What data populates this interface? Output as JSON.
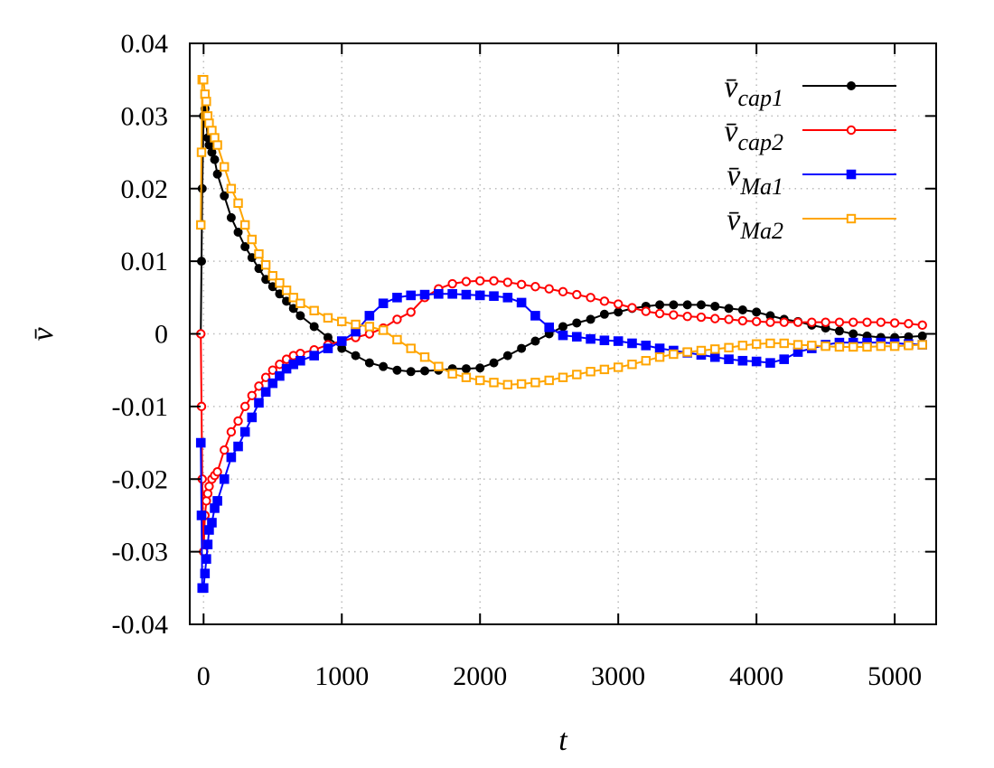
{
  "chart_data": {
    "type": "line",
    "title": "",
    "xlabel": "t",
    "ylabel": "v̄",
    "xlim": [
      -100,
      5300
    ],
    "ylim": [
      -0.04,
      0.04
    ],
    "xticks": [
      0,
      1000,
      2000,
      3000,
      4000,
      5000
    ],
    "xtick_labels": [
      "0",
      "1000",
      "2000",
      "3000",
      "4000",
      "5000"
    ],
    "yticks": [
      -0.04,
      -0.03,
      -0.02,
      -0.01,
      0,
      0.01,
      0.02,
      0.03,
      0.04
    ],
    "ytick_labels": [
      "-0.04",
      "-0.03",
      "-0.02",
      "-0.01",
      "0",
      "0.01",
      "0.02",
      "0.03",
      "0.04"
    ],
    "grid": true,
    "legend_position": "top-right",
    "series": [
      {
        "name": "v̄cap1",
        "label_main": "v̄",
        "label_sub": "cap1",
        "color": "#000000",
        "marker": "filled-circle",
        "x": [
          -20,
          -15,
          -10,
          0,
          10,
          20,
          30,
          40,
          60,
          80,
          100,
          150,
          200,
          250,
          300,
          350,
          400,
          450,
          500,
          550,
          600,
          650,
          700,
          800,
          900,
          1000,
          1100,
          1200,
          1300,
          1400,
          1500,
          1600,
          1700,
          1800,
          1900,
          2000,
          2100,
          2200,
          2300,
          2400,
          2500,
          2600,
          2700,
          2800,
          2900,
          3000,
          3100,
          3200,
          3300,
          3400,
          3500,
          3600,
          3700,
          3800,
          3900,
          4000,
          4100,
          4200,
          4300,
          4400,
          4500,
          4600,
          4700,
          4800,
          4900,
          5000,
          5100,
          5200
        ],
        "y": [
          0.0,
          0.01,
          0.02,
          0.03,
          0.031,
          0.029,
          0.027,
          0.026,
          0.025,
          0.024,
          0.022,
          0.019,
          0.016,
          0.014,
          0.012,
          0.0105,
          0.009,
          0.0075,
          0.0065,
          0.0055,
          0.0045,
          0.0035,
          0.0025,
          0.001,
          -0.0005,
          -0.002,
          -0.003,
          -0.004,
          -0.0045,
          -0.005,
          -0.0052,
          -0.0051,
          -0.005,
          -0.0048,
          -0.0048,
          -0.0047,
          -0.004,
          -0.003,
          -0.002,
          -0.001,
          0.0,
          0.001,
          0.0015,
          0.002,
          0.0027,
          0.003,
          0.0035,
          0.0038,
          0.004,
          0.004,
          0.004,
          0.004,
          0.0038,
          0.0035,
          0.0033,
          0.003,
          0.0025,
          0.002,
          0.0017,
          0.0012,
          0.0008,
          0.0004,
          0.0,
          -0.0003,
          -0.0005,
          -0.0005,
          -0.0004,
          -0.0003
        ]
      },
      {
        "name": "v̄cap2",
        "label_main": "v̄",
        "label_sub": "cap2",
        "color": "#ff0000",
        "marker": "open-circle",
        "x": [
          -20,
          -15,
          -10,
          0,
          10,
          20,
          30,
          40,
          60,
          80,
          100,
          150,
          200,
          250,
          300,
          350,
          400,
          450,
          500,
          550,
          600,
          650,
          700,
          800,
          900,
          1000,
          1100,
          1200,
          1300,
          1400,
          1500,
          1600,
          1700,
          1800,
          1900,
          2000,
          2100,
          2200,
          2300,
          2400,
          2500,
          2600,
          2700,
          2800,
          2900,
          3000,
          3100,
          3200,
          3300,
          3400,
          3500,
          3600,
          3700,
          3800,
          3900,
          4000,
          4100,
          4200,
          4300,
          4400,
          4500,
          4600,
          4700,
          4800,
          4900,
          5000,
          5100,
          5200
        ],
        "y": [
          0.0,
          -0.01,
          -0.02,
          -0.03,
          -0.025,
          -0.023,
          -0.022,
          -0.021,
          -0.02,
          -0.0195,
          -0.019,
          -0.016,
          -0.0135,
          -0.012,
          -0.01,
          -0.0085,
          -0.0072,
          -0.006,
          -0.005,
          -0.0042,
          -0.0035,
          -0.003,
          -0.0027,
          -0.0022,
          -0.0015,
          -0.001,
          -0.0005,
          0.0,
          0.0008,
          0.002,
          0.003,
          0.005,
          0.0062,
          0.0069,
          0.0072,
          0.0073,
          0.0073,
          0.0071,
          0.0068,
          0.0065,
          0.0062,
          0.0058,
          0.0054,
          0.005,
          0.0045,
          0.0041,
          0.0036,
          0.0031,
          0.0028,
          0.0026,
          0.0024,
          0.0023,
          0.0021,
          0.002,
          0.0018,
          0.0017,
          0.0016,
          0.0016,
          0.0016,
          0.0016,
          0.0016,
          0.0016,
          0.0016,
          0.0016,
          0.0016,
          0.0015,
          0.0014,
          0.0012
        ]
      },
      {
        "name": "v̄Ma1",
        "label_main": "v̄",
        "label_sub": "Ma1",
        "color": "#0000ff",
        "marker": "filled-square",
        "x": [
          -20,
          -15,
          -10,
          0,
          10,
          20,
          30,
          40,
          60,
          80,
          100,
          150,
          200,
          250,
          300,
          350,
          400,
          450,
          500,
          550,
          600,
          650,
          700,
          800,
          900,
          1000,
          1100,
          1200,
          1300,
          1400,
          1500,
          1600,
          1700,
          1800,
          1900,
          2000,
          2100,
          2200,
          2300,
          2400,
          2500,
          2600,
          2700,
          2800,
          2900,
          3000,
          3100,
          3200,
          3300,
          3400,
          3500,
          3600,
          3700,
          3800,
          3900,
          4000,
          4100,
          4200,
          4300,
          4400,
          4500,
          4600,
          4700,
          4800,
          4900,
          5000,
          5100,
          5200
        ],
        "y": [
          -0.015,
          -0.025,
          -0.035,
          -0.035,
          -0.033,
          -0.031,
          -0.029,
          -0.027,
          -0.026,
          -0.024,
          -0.023,
          -0.02,
          -0.017,
          -0.0155,
          -0.0135,
          -0.0115,
          -0.0095,
          -0.008,
          -0.0068,
          -0.0058,
          -0.0048,
          -0.0042,
          -0.0037,
          -0.003,
          -0.002,
          -0.001,
          0.0003,
          0.0025,
          0.0042,
          0.005,
          0.0053,
          0.0054,
          0.0055,
          0.0055,
          0.0054,
          0.0053,
          0.0052,
          0.005,
          0.0043,
          0.0025,
          0.0009,
          -0.0002,
          -0.0004,
          -0.0007,
          -0.0009,
          -0.001,
          -0.0013,
          -0.0016,
          -0.002,
          -0.0023,
          -0.0026,
          -0.0029,
          -0.0032,
          -0.0035,
          -0.0037,
          -0.0038,
          -0.004,
          -0.0035,
          -0.0025,
          -0.002,
          -0.0015,
          -0.0012,
          -0.0012,
          -0.0012,
          -0.0012,
          -0.0013,
          -0.0014,
          -0.0015
        ]
      },
      {
        "name": "v̄Ma2",
        "label_main": "v̄",
        "label_sub": "Ma2",
        "color": "#ffa500",
        "marker": "open-square",
        "x": [
          -20,
          -15,
          -10,
          0,
          10,
          20,
          30,
          40,
          60,
          80,
          100,
          150,
          200,
          250,
          300,
          350,
          400,
          450,
          500,
          550,
          600,
          650,
          700,
          800,
          900,
          1000,
          1100,
          1200,
          1300,
          1400,
          1500,
          1600,
          1700,
          1800,
          1900,
          2000,
          2100,
          2200,
          2300,
          2400,
          2500,
          2600,
          2700,
          2800,
          2900,
          3000,
          3100,
          3200,
          3300,
          3400,
          3500,
          3600,
          3700,
          3800,
          3900,
          4000,
          4100,
          4200,
          4300,
          4400,
          4500,
          4600,
          4700,
          4800,
          4900,
          5000,
          5100,
          5200
        ],
        "y": [
          0.015,
          0.025,
          0.035,
          0.035,
          0.033,
          0.032,
          0.03,
          0.029,
          0.028,
          0.027,
          0.026,
          0.023,
          0.02,
          0.018,
          0.015,
          0.013,
          0.011,
          0.0095,
          0.008,
          0.007,
          0.006,
          0.005,
          0.0042,
          0.0032,
          0.0022,
          0.0017,
          0.0013,
          0.001,
          0.0005,
          -0.0008,
          -0.002,
          -0.0032,
          -0.0045,
          -0.0055,
          -0.006,
          -0.0064,
          -0.0067,
          -0.007,
          -0.0069,
          -0.0067,
          -0.0064,
          -0.006,
          -0.0056,
          -0.0052,
          -0.0049,
          -0.0046,
          -0.0042,
          -0.0037,
          -0.0032,
          -0.0028,
          -0.0025,
          -0.0023,
          -0.0021,
          -0.0019,
          -0.0016,
          -0.0014,
          -0.0013,
          -0.0013,
          -0.0015,
          -0.0016,
          -0.0017,
          -0.0018,
          -0.0018,
          -0.0018,
          -0.0017,
          -0.0017,
          -0.0016,
          -0.0015
        ]
      }
    ]
  }
}
